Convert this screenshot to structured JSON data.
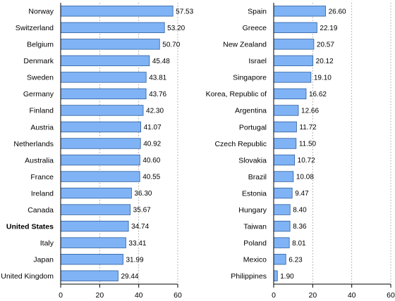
{
  "colors": {
    "bar_fill": "#7fb3f5",
    "bar_stroke": "#2f5f9e",
    "axis": "#000000",
    "grid": "#8c8c8c"
  },
  "chart_data": [
    {
      "type": "bar",
      "orientation": "horizontal",
      "categories": [
        "Norway",
        "Switzerland",
        "Belgium",
        "Denmark",
        "Sweden",
        "Germany",
        "Finland",
        "Austria",
        "Netherlands",
        "Australia",
        "France",
        "Ireland",
        "Canada",
        "United States",
        "Italy",
        "Japan",
        "United Kingdom"
      ],
      "values": [
        57.53,
        53.2,
        50.7,
        45.48,
        43.81,
        43.76,
        42.3,
        41.07,
        40.92,
        40.6,
        40.55,
        36.3,
        35.67,
        34.74,
        33.41,
        31.99,
        29.44
      ],
      "value_labels": [
        "57.53",
        "53.20",
        "50.70",
        "45.48",
        "43.81",
        "43.76",
        "42.30",
        "41.07",
        "40.92",
        "40.60",
        "40.55",
        "36.30",
        "35.67",
        "34.74",
        "33.41",
        "31.99",
        "29.44"
      ],
      "highlight": [
        "United States"
      ],
      "xlim": [
        0,
        60
      ],
      "xticks": [
        "0",
        "20",
        "40",
        "60"
      ],
      "grid": "vertical dotted"
    },
    {
      "type": "bar",
      "orientation": "horizontal",
      "categories": [
        "Spain",
        "Greece",
        "New Zealand",
        "Israel",
        "Singapore",
        "Korea, Republic of",
        "Argentina",
        "Portugal",
        "Czech Republic",
        "Slovakia",
        "Brazil",
        "Estonia",
        "Hungary",
        "Taiwan",
        "Poland",
        "Mexico",
        "Philippines"
      ],
      "values": [
        26.6,
        22.19,
        20.57,
        20.12,
        19.1,
        16.62,
        12.66,
        11.72,
        11.5,
        10.72,
        10.08,
        9.47,
        8.4,
        8.36,
        8.01,
        6.23,
        1.9
      ],
      "value_labels": [
        "26.60",
        "22.19",
        "20.57",
        "20.12",
        "19.10",
        "16.62",
        "12.66",
        "11.72",
        "11.50",
        "10.72",
        "10.08",
        "9.47",
        "8.40",
        "8.36",
        "8.01",
        "6.23",
        "1.90"
      ],
      "highlight": [],
      "xlim": [
        0,
        60
      ],
      "xticks": [
        "0",
        "20",
        "40",
        "60"
      ],
      "grid": "vertical dotted"
    }
  ]
}
